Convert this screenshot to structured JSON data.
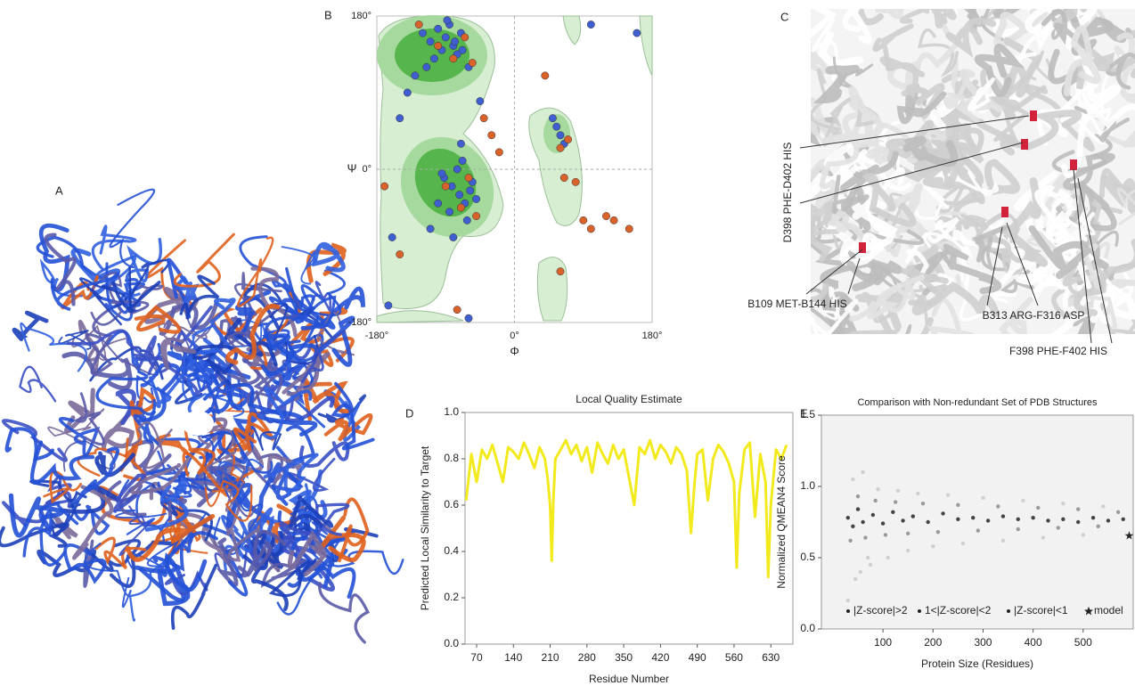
{
  "panel_labels": [
    "A",
    "B",
    "C",
    "D",
    "E"
  ],
  "annotations": [
    "D398 PHE-D402 HIS",
    "B109 MET-B144 HIS",
    "B313 ARG-F316 ASP",
    "F398 PHE-F402 HIS"
  ],
  "chart_data": [
    {
      "type": "scatter",
      "x_label": "Φ",
      "y_label": "Ψ",
      "xlim": [
        -180,
        180
      ],
      "ylim": [
        -180,
        180
      ],
      "xticks": [
        {
          "value": -180,
          "label": "-180°"
        },
        {
          "value": 0,
          "label": "0°"
        },
        {
          "value": 180,
          "label": "180°"
        }
      ],
      "yticks": [
        {
          "value": -180,
          "label": "-180°"
        },
        {
          "value": 0,
          "label": "0°"
        },
        {
          "value": 180,
          "label": "180°"
        }
      ],
      "series": [
        {
          "color": "#3f5fd0",
          "x": [
            -120,
            -110,
            -100,
            -95,
            -90,
            -85,
            -80,
            -75,
            -70,
            -105,
            -115,
            -88,
            -78,
            -68,
            -60,
            -130,
            -140,
            -150,
            -92,
            -82,
            -72,
            -65,
            -58,
            -50,
            -85,
            -95,
            -75,
            -68,
            -62,
            -55,
            -100,
            -110,
            -80,
            -70,
            55,
            60,
            65,
            50,
            -160,
            -165,
            -60,
            -45,
            100,
            160
          ],
          "values": [
            160,
            150,
            165,
            140,
            155,
            170,
            145,
            135,
            160,
            130,
            120,
            175,
            150,
            140,
            120,
            110,
            90,
            60,
            -10,
            -20,
            -30,
            -40,
            -25,
            -35,
            -50,
            -5,
            0,
            10,
            -60,
            -15,
            -40,
            -70,
            -80,
            30,
            50,
            40,
            30,
            60,
            -80,
            -160,
            -175,
            80,
            170,
            160
          ]
        },
        {
          "color": "#d9622b",
          "x": [
            -125,
            -100,
            -80,
            -65,
            -55,
            -90,
            -70,
            -60,
            -50,
            -40,
            -30,
            -20,
            60,
            65,
            70,
            -150,
            -170,
            80,
            90,
            100,
            120,
            130,
            150,
            -75,
            60,
            40
          ],
          "values": [
            170,
            145,
            130,
            155,
            125,
            -20,
            -45,
            -10,
            -55,
            60,
            40,
            20,
            25,
            -10,
            35,
            -100,
            -20,
            -15,
            -60,
            -70,
            -55,
            -60,
            -70,
            -165,
            -120,
            110
          ]
        }
      ]
    },
    {
      "type": "line",
      "title": "Local Quality Estimate",
      "x_label": "Residue Number",
      "y_label": "Predicted Local Similarity to Target",
      "xlim": [
        48,
        672
      ],
      "ylim": [
        0,
        1
      ],
      "xticks": [
        70,
        140,
        210,
        280,
        350,
        420,
        490,
        560,
        630
      ],
      "yticks": [
        {
          "value": 0,
          "label": "0.0"
        },
        {
          "value": 0.2,
          "label": "0.2"
        },
        {
          "value": 0.4,
          "label": "0.4"
        },
        {
          "value": 0.6,
          "label": "0.6"
        },
        {
          "value": 0.8,
          "label": "0.8"
        },
        {
          "value": 1,
          "label": "1.0"
        }
      ],
      "series": [
        {
          "color": "#f2ea1d",
          "x": [
            50,
            60,
            70,
            80,
            90,
            100,
            110,
            120,
            130,
            140,
            150,
            160,
            170,
            180,
            190,
            200,
            205,
            210,
            213,
            216,
            220,
            230,
            240,
            250,
            260,
            270,
            280,
            290,
            300,
            310,
            320,
            330,
            340,
            350,
            360,
            370,
            380,
            390,
            400,
            410,
            420,
            430,
            440,
            450,
            460,
            470,
            478,
            485,
            490,
            500,
            510,
            520,
            530,
            540,
            550,
            560,
            565,
            570,
            580,
            590,
            600,
            610,
            620,
            625,
            630,
            640,
            650,
            660
          ],
          "values": [
            0.62,
            0.82,
            0.7,
            0.84,
            0.8,
            0.86,
            0.78,
            0.7,
            0.85,
            0.83,
            0.8,
            0.87,
            0.82,
            0.76,
            0.85,
            0.8,
            0.72,
            0.6,
            0.36,
            0.62,
            0.8,
            0.84,
            0.88,
            0.82,
            0.86,
            0.79,
            0.85,
            0.74,
            0.87,
            0.82,
            0.78,
            0.86,
            0.8,
            0.84,
            0.72,
            0.6,
            0.85,
            0.82,
            0.88,
            0.8,
            0.86,
            0.83,
            0.78,
            0.85,
            0.82,
            0.75,
            0.48,
            0.7,
            0.82,
            0.84,
            0.62,
            0.8,
            0.86,
            0.83,
            0.78,
            0.7,
            0.33,
            0.65,
            0.84,
            0.87,
            0.55,
            0.82,
            0.7,
            0.29,
            0.6,
            0.84,
            0.8,
            0.86
          ]
        }
      ]
    },
    {
      "type": "scatter",
      "title": "Comparison with Non-redundant Set of PDB Structures",
      "x_label": "Protein Size (Residues)",
      "y_label": "Normalized QMEAN4 Score",
      "xlim": [
        -23,
        600
      ],
      "ylim": [
        0,
        1.5
      ],
      "xticks": [
        100,
        200,
        300,
        400,
        500
      ],
      "yticks": [
        {
          "value": 0,
          "label": "0.0"
        },
        {
          "value": 0.5,
          "label": "0.5"
        },
        {
          "value": 1,
          "label": "1.0"
        },
        {
          "value": 1.5,
          "label": "1.5"
        }
      ],
      "series": [
        {
          "name": "|Z-score|>2",
          "color": "#cfcfcf",
          "x": [
            30,
            40,
            55,
            60,
            75,
            90,
            110,
            130,
            150,
            170,
            200,
            230,
            260,
            300,
            340,
            380,
            420,
            460,
            500,
            540,
            45,
            70
          ],
          "values": [
            0.2,
            1.05,
            0.4,
            1.1,
            0.45,
            0.98,
            0.5,
            0.97,
            0.55,
            0.95,
            0.58,
            0.94,
            0.6,
            0.92,
            0.62,
            0.9,
            0.64,
            0.88,
            0.66,
            0.86,
            0.35,
            0.5
          ]
        },
        {
          "name": "1<|Z-score|<2",
          "color": "#9a9a9a",
          "x": [
            35,
            50,
            65,
            85,
            105,
            125,
            150,
            180,
            210,
            250,
            290,
            330,
            370,
            410,
            450,
            490,
            530,
            570
          ],
          "values": [
            0.62,
            0.93,
            0.64,
            0.9,
            0.66,
            0.89,
            0.67,
            0.88,
            0.68,
            0.87,
            0.69,
            0.86,
            0.7,
            0.85,
            0.71,
            0.84,
            0.72,
            0.82
          ]
        },
        {
          "name": "|Z-score|<1",
          "color": "#444444",
          "x": [
            30,
            40,
            50,
            60,
            80,
            100,
            120,
            140,
            160,
            190,
            220,
            250,
            280,
            310,
            340,
            370,
            400,
            430,
            460,
            490,
            520,
            550,
            580
          ],
          "values": [
            0.78,
            0.72,
            0.84,
            0.75,
            0.8,
            0.74,
            0.82,
            0.76,
            0.79,
            0.75,
            0.81,
            0.77,
            0.78,
            0.76,
            0.79,
            0.77,
            0.78,
            0.76,
            0.77,
            0.75,
            0.78,
            0.76,
            0.77
          ]
        },
        {
          "name": "model",
          "color": "#ff5a6e",
          "x": [
            592
          ],
          "values": [
            0.65
          ]
        }
      ]
    }
  ]
}
